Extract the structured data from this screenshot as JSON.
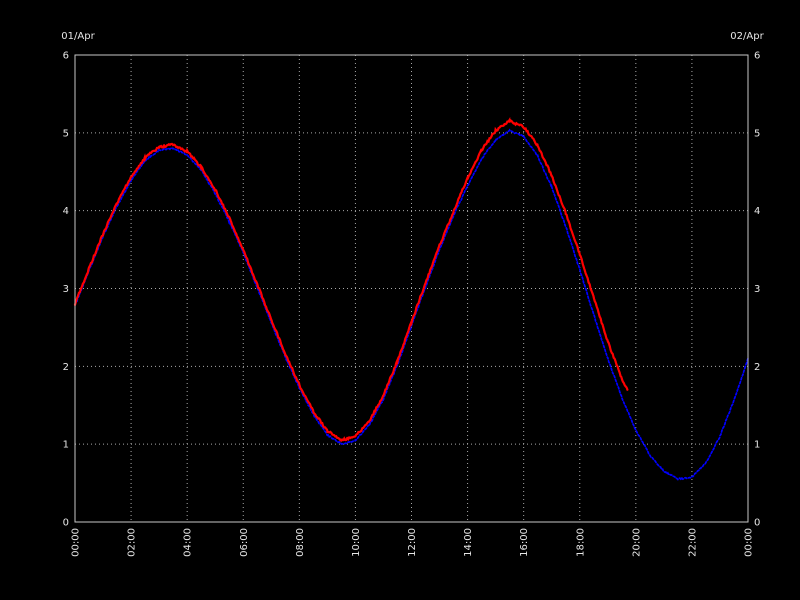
{
  "chart": {
    "top_left_label": "01/Apr",
    "top_right_label": "02/Apr",
    "background_color": "#000000",
    "axis_color": "#c8c8c8",
    "grid_color": "#a8a8a8",
    "label_color": "#e6e6e6"
  },
  "chart_data": {
    "type": "line",
    "title": "",
    "xlabel": "",
    "ylabel": "",
    "x_unit": "time (hh:mm)",
    "x_tick_labels": [
      "00:00",
      "02:00",
      "04:00",
      "06:00",
      "08:00",
      "10:00",
      "12:00",
      "14:00",
      "16:00",
      "18:00",
      "20:00",
      "22:00",
      "00:00"
    ],
    "x_tick_hours": [
      0,
      2,
      4,
      6,
      8,
      10,
      12,
      14,
      16,
      18,
      20,
      22,
      24
    ],
    "x_range_hours": [
      0,
      24
    ],
    "y_ticks": [
      0,
      1,
      2,
      3,
      4,
      5,
      6
    ],
    "ylim": [
      0,
      6
    ],
    "y_axis_right_mirrors_left": true,
    "grid": true,
    "start_date_label": "01/Apr",
    "end_date_label": "02/Apr",
    "legend": "none",
    "series": [
      {
        "name": "blue-series",
        "color": "#0000ff",
        "style": "dotted",
        "points": [
          [
            0,
            2.78
          ],
          [
            0.5,
            3.23
          ],
          [
            1,
            3.67
          ],
          [
            1.5,
            4.06
          ],
          [
            2,
            4.39
          ],
          [
            2.5,
            4.64
          ],
          [
            3,
            4.78
          ],
          [
            3.5,
            4.8
          ],
          [
            4,
            4.72
          ],
          [
            4.5,
            4.52
          ],
          [
            5,
            4.22
          ],
          [
            5.5,
            3.86
          ],
          [
            6,
            3.46
          ],
          [
            6.5,
            3.01
          ],
          [
            7,
            2.56
          ],
          [
            7.5,
            2.12
          ],
          [
            8,
            1.72
          ],
          [
            8.5,
            1.38
          ],
          [
            9,
            1.12
          ],
          [
            9.5,
            1.0
          ],
          [
            10,
            1.05
          ],
          [
            10.5,
            1.25
          ],
          [
            11,
            1.58
          ],
          [
            11.5,
            2.02
          ],
          [
            12,
            2.52
          ],
          [
            12.5,
            3.02
          ],
          [
            13,
            3.5
          ],
          [
            13.5,
            3.94
          ],
          [
            14,
            4.32
          ],
          [
            14.5,
            4.67
          ],
          [
            15,
            4.91
          ],
          [
            15.5,
            5.03
          ],
          [
            16,
            4.95
          ],
          [
            16.5,
            4.7
          ],
          [
            17,
            4.3
          ],
          [
            17.5,
            3.8
          ],
          [
            18,
            3.24
          ],
          [
            18.5,
            2.66
          ],
          [
            19,
            2.1
          ],
          [
            19.5,
            1.6
          ],
          [
            20,
            1.18
          ],
          [
            20.5,
            0.86
          ],
          [
            21,
            0.65
          ],
          [
            21.5,
            0.55
          ],
          [
            22,
            0.58
          ],
          [
            22.5,
            0.76
          ],
          [
            23,
            1.1
          ],
          [
            23.5,
            1.56
          ],
          [
            24,
            2.1
          ]
        ]
      },
      {
        "name": "red-series",
        "color": "#ff0000",
        "style": "solid",
        "points": [
          [
            0,
            2.8
          ],
          [
            0.5,
            3.26
          ],
          [
            1,
            3.7
          ],
          [
            1.5,
            4.1
          ],
          [
            2,
            4.43
          ],
          [
            2.5,
            4.68
          ],
          [
            3,
            4.82
          ],
          [
            3.5,
            4.85
          ],
          [
            4,
            4.76
          ],
          [
            4.5,
            4.56
          ],
          [
            5,
            4.27
          ],
          [
            5.5,
            3.91
          ],
          [
            6,
            3.5
          ],
          [
            6.5,
            3.05
          ],
          [
            7,
            2.6
          ],
          [
            7.5,
            2.16
          ],
          [
            8,
            1.76
          ],
          [
            8.5,
            1.42
          ],
          [
            9,
            1.17
          ],
          [
            9.5,
            1.05
          ],
          [
            10,
            1.1
          ],
          [
            10.5,
            1.3
          ],
          [
            11,
            1.63
          ],
          [
            11.5,
            2.07
          ],
          [
            12,
            2.57
          ],
          [
            12.5,
            3.07
          ],
          [
            13,
            3.55
          ],
          [
            13.5,
            3.99
          ],
          [
            14,
            4.42
          ],
          [
            14.5,
            4.78
          ],
          [
            15,
            5.03
          ],
          [
            15.5,
            5.15
          ],
          [
            16,
            5.08
          ],
          [
            16.5,
            4.84
          ],
          [
            17,
            4.45
          ],
          [
            17.5,
            3.97
          ],
          [
            18,
            3.44
          ],
          [
            18.5,
            2.88
          ],
          [
            19,
            2.32
          ],
          [
            19.5,
            1.84
          ],
          [
            19.7,
            1.7
          ]
        ]
      }
    ]
  }
}
